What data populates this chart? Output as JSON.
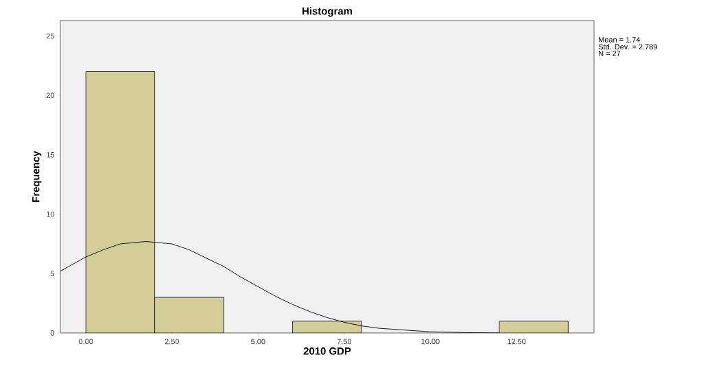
{
  "chart_data": {
    "type": "histogram",
    "title": "Histogram",
    "xlabel": "2010 GDP",
    "ylabel": "Frequency",
    "annotations": [
      "Mean = 1.74",
      "Std. Dev. = 2.789",
      "N = 27"
    ],
    "bins": [
      0,
      2,
      4,
      6,
      8,
      10,
      12,
      14
    ],
    "values": [
      22,
      3,
      0,
      1,
      0,
      0,
      1
    ],
    "color": "#d3cd97",
    "series": [
      {
        "type": "line",
        "color": "#000000",
        "x": [
          -0.74,
          0,
          0.5,
          1,
          1.74,
          2.5,
          3,
          3.5,
          4,
          4.5,
          5,
          5.5,
          6,
          6.5,
          7,
          7.5,
          8,
          8.5,
          9,
          10,
          11,
          12
        ],
        "values": [
          5.2,
          6.4,
          7.0,
          7.5,
          7.7,
          7.5,
          7.0,
          6.3,
          5.6,
          4.7,
          3.9,
          3.1,
          2.4,
          1.8,
          1.3,
          0.9,
          0.6,
          0.4,
          0.3,
          0.1,
          0.03,
          0.01
        ]
      }
    ],
    "xlim": [
      -0.74,
      14.75
    ],
    "ylim": [
      0,
      26.3
    ],
    "xticks": [
      {
        "value": 0,
        "label": "0.00"
      },
      {
        "value": 2.5,
        "label": "2.50"
      },
      {
        "value": 5,
        "label": "5.00"
      },
      {
        "value": 7.5,
        "label": "7.50"
      },
      {
        "value": 10,
        "label": "10.00"
      },
      {
        "value": 12.5,
        "label": "12.50"
      }
    ],
    "yticks": [
      0,
      5,
      10,
      15,
      20,
      25
    ]
  }
}
